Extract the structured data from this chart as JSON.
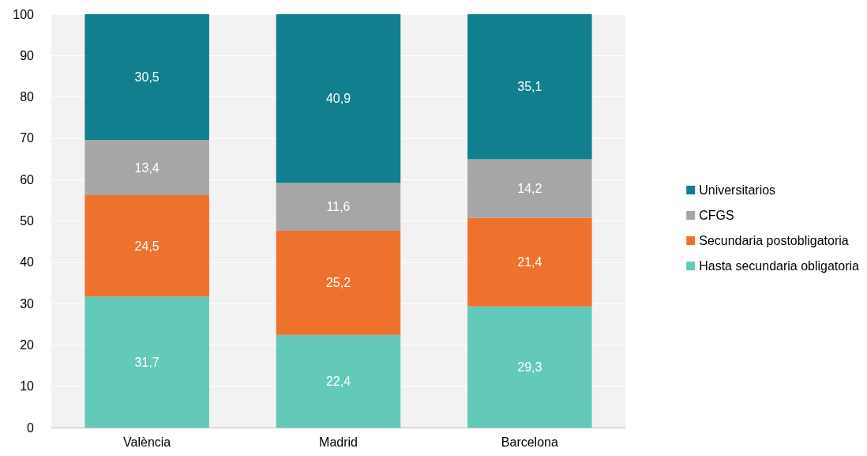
{
  "chart_data": {
    "type": "bar",
    "stacked": true,
    "categories": [
      "València",
      "Madrid",
      "Barcelona"
    ],
    "series": [
      {
        "name": "Hasta secundaria obligatoria",
        "color": "#63c9b8",
        "values": [
          31.7,
          22.4,
          29.3
        ],
        "value_labels": [
          "31,7",
          "22,4",
          "29,3"
        ]
      },
      {
        "name": "Secundaria postobligatoria",
        "color": "#ef712e",
        "values": [
          24.5,
          25.2,
          21.4
        ],
        "value_labels": [
          "24,5",
          "25,2",
          "21,4"
        ]
      },
      {
        "name": "CFGS",
        "color": "#a6a6a6",
        "values": [
          13.4,
          11.6,
          14.2
        ],
        "value_labels": [
          "13,4",
          "11,6",
          "14,2"
        ]
      },
      {
        "name": "Universitarios",
        "color": "#117f8d",
        "values": [
          30.5,
          40.9,
          35.1
        ],
        "value_labels": [
          "30,5",
          "40,9",
          "35,1"
        ]
      }
    ],
    "ylim": [
      0,
      100
    ],
    "yticks": [
      0,
      10,
      20,
      30,
      40,
      50,
      60,
      70,
      80,
      90,
      100
    ],
    "grid": "y",
    "legend": "right"
  }
}
